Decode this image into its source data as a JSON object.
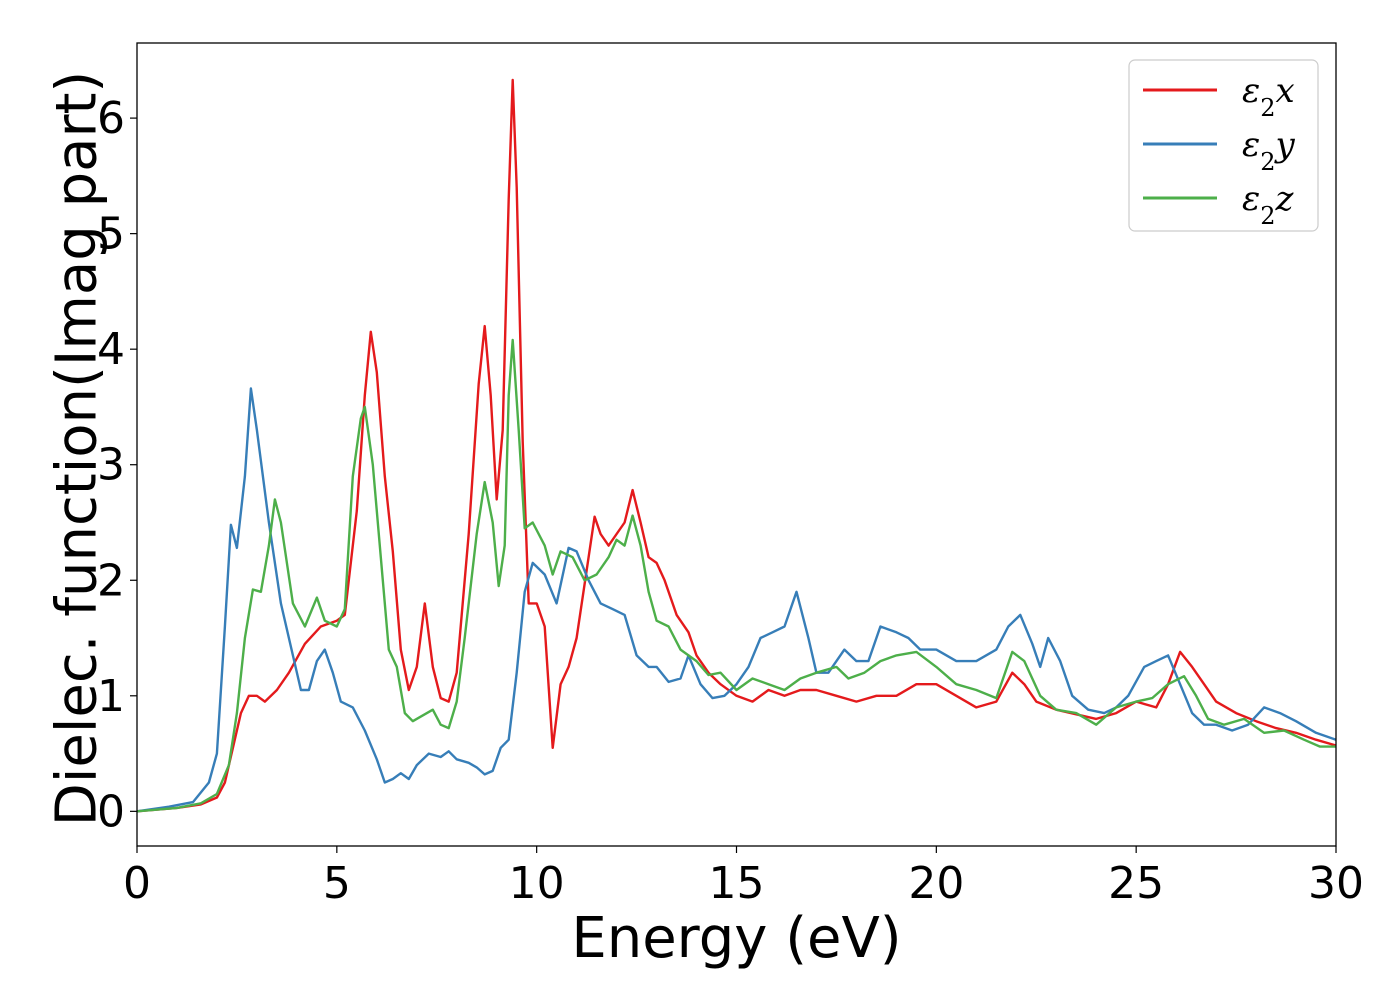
{
  "chart_data": {
    "type": "line",
    "title": "",
    "xlabel": "Energy (eV)",
    "ylabel": "Dielec. function(Imag part)",
    "xlim": [
      0,
      30
    ],
    "ylim": [
      -0.3,
      6.65
    ],
    "x_ticks": [
      "0",
      "5",
      "10",
      "15",
      "20",
      "25",
      "30"
    ],
    "y_ticks": [
      "0",
      "1",
      "2",
      "3",
      "4",
      "5",
      "6"
    ],
    "grid": false,
    "legend_position": "top-right",
    "series": [
      {
        "name": "ε₂x",
        "legend_base": "ε",
        "legend_sub": "2",
        "legend_var": "x",
        "color": "#e41a1c",
        "points": [
          [
            0,
            0
          ],
          [
            1,
            0.03
          ],
          [
            1.6,
            0.06
          ],
          [
            2,
            0.12
          ],
          [
            2.2,
            0.25
          ],
          [
            2.4,
            0.55
          ],
          [
            2.6,
            0.85
          ],
          [
            2.8,
            1.0
          ],
          [
            3.0,
            1.0
          ],
          [
            3.2,
            0.95
          ],
          [
            3.5,
            1.05
          ],
          [
            3.8,
            1.2
          ],
          [
            4.2,
            1.45
          ],
          [
            4.6,
            1.6
          ],
          [
            5.0,
            1.65
          ],
          [
            5.2,
            1.7
          ],
          [
            5.5,
            2.6
          ],
          [
            5.7,
            3.6
          ],
          [
            5.85,
            4.15
          ],
          [
            6.0,
            3.8
          ],
          [
            6.2,
            2.9
          ],
          [
            6.4,
            2.25
          ],
          [
            6.6,
            1.4
          ],
          [
            6.8,
            1.05
          ],
          [
            7.0,
            1.25
          ],
          [
            7.2,
            1.8
          ],
          [
            7.4,
            1.25
          ],
          [
            7.6,
            0.98
          ],
          [
            7.8,
            0.95
          ],
          [
            8.0,
            1.2
          ],
          [
            8.3,
            2.4
          ],
          [
            8.55,
            3.7
          ],
          [
            8.7,
            4.2
          ],
          [
            8.85,
            3.6
          ],
          [
            9.0,
            2.7
          ],
          [
            9.15,
            3.3
          ],
          [
            9.3,
            5.3
          ],
          [
            9.4,
            6.33
          ],
          [
            9.5,
            5.4
          ],
          [
            9.65,
            3.2
          ],
          [
            9.8,
            1.8
          ],
          [
            10.0,
            1.8
          ],
          [
            10.2,
            1.6
          ],
          [
            10.4,
            0.55
          ],
          [
            10.6,
            1.1
          ],
          [
            10.8,
            1.25
          ],
          [
            11.0,
            1.5
          ],
          [
            11.3,
            2.2
          ],
          [
            11.45,
            2.55
          ],
          [
            11.6,
            2.4
          ],
          [
            11.8,
            2.3
          ],
          [
            12.0,
            2.4
          ],
          [
            12.2,
            2.5
          ],
          [
            12.4,
            2.78
          ],
          [
            12.6,
            2.5
          ],
          [
            12.8,
            2.2
          ],
          [
            13.0,
            2.15
          ],
          [
            13.2,
            2.0
          ],
          [
            13.5,
            1.7
          ],
          [
            13.8,
            1.55
          ],
          [
            14.0,
            1.35
          ],
          [
            14.3,
            1.2
          ],
          [
            14.6,
            1.1
          ],
          [
            15.0,
            1.0
          ],
          [
            15.4,
            0.95
          ],
          [
            15.8,
            1.05
          ],
          [
            16.2,
            1.0
          ],
          [
            16.6,
            1.05
          ],
          [
            17.0,
            1.05
          ],
          [
            17.5,
            1.0
          ],
          [
            18.0,
            0.95
          ],
          [
            18.5,
            1.0
          ],
          [
            19.0,
            1.0
          ],
          [
            19.5,
            1.1
          ],
          [
            20.0,
            1.1
          ],
          [
            20.5,
            1.0
          ],
          [
            21.0,
            0.9
          ],
          [
            21.5,
            0.95
          ],
          [
            21.9,
            1.2
          ],
          [
            22.2,
            1.1
          ],
          [
            22.5,
            0.95
          ],
          [
            23.0,
            0.88
          ],
          [
            23.5,
            0.84
          ],
          [
            24.0,
            0.8
          ],
          [
            24.5,
            0.85
          ],
          [
            25.0,
            0.95
          ],
          [
            25.5,
            0.9
          ],
          [
            25.8,
            1.1
          ],
          [
            26.1,
            1.38
          ],
          [
            26.4,
            1.25
          ],
          [
            26.7,
            1.1
          ],
          [
            27.0,
            0.95
          ],
          [
            27.5,
            0.85
          ],
          [
            28.0,
            0.78
          ],
          [
            28.5,
            0.72
          ],
          [
            29.0,
            0.68
          ],
          [
            29.5,
            0.62
          ],
          [
            30,
            0.57
          ]
        ]
      },
      {
        "name": "ε₂y",
        "legend_base": "ε",
        "legend_sub": "2",
        "legend_var": "y",
        "color": "#377eb8",
        "points": [
          [
            0,
            0
          ],
          [
            0.8,
            0.04
          ],
          [
            1.4,
            0.08
          ],
          [
            1.8,
            0.25
          ],
          [
            2.0,
            0.5
          ],
          [
            2.2,
            1.6
          ],
          [
            2.35,
            2.48
          ],
          [
            2.5,
            2.28
          ],
          [
            2.7,
            2.9
          ],
          [
            2.85,
            3.66
          ],
          [
            3.0,
            3.3
          ],
          [
            3.3,
            2.5
          ],
          [
            3.6,
            1.8
          ],
          [
            3.9,
            1.35
          ],
          [
            4.1,
            1.05
          ],
          [
            4.3,
            1.05
          ],
          [
            4.5,
            1.3
          ],
          [
            4.7,
            1.4
          ],
          [
            4.9,
            1.2
          ],
          [
            5.1,
            0.95
          ],
          [
            5.4,
            0.9
          ],
          [
            5.7,
            0.7
          ],
          [
            6.0,
            0.45
          ],
          [
            6.2,
            0.25
          ],
          [
            6.4,
            0.28
          ],
          [
            6.6,
            0.33
          ],
          [
            6.8,
            0.28
          ],
          [
            7.0,
            0.4
          ],
          [
            7.3,
            0.5
          ],
          [
            7.6,
            0.47
          ],
          [
            7.8,
            0.52
          ],
          [
            8.0,
            0.45
          ],
          [
            8.3,
            0.42
          ],
          [
            8.5,
            0.38
          ],
          [
            8.7,
            0.32
          ],
          [
            8.9,
            0.35
          ],
          [
            9.1,
            0.55
          ],
          [
            9.3,
            0.62
          ],
          [
            9.5,
            1.2
          ],
          [
            9.7,
            1.9
          ],
          [
            9.9,
            2.15
          ],
          [
            10.2,
            2.05
          ],
          [
            10.5,
            1.8
          ],
          [
            10.8,
            2.28
          ],
          [
            11.0,
            2.25
          ],
          [
            11.3,
            2.0
          ],
          [
            11.6,
            1.8
          ],
          [
            11.9,
            1.75
          ],
          [
            12.2,
            1.7
          ],
          [
            12.5,
            1.35
          ],
          [
            12.8,
            1.25
          ],
          [
            13.0,
            1.25
          ],
          [
            13.3,
            1.12
          ],
          [
            13.6,
            1.15
          ],
          [
            13.8,
            1.35
          ],
          [
            14.1,
            1.1
          ],
          [
            14.4,
            0.98
          ],
          [
            14.7,
            1.0
          ],
          [
            15.0,
            1.1
          ],
          [
            15.3,
            1.25
          ],
          [
            15.6,
            1.5
          ],
          [
            15.9,
            1.55
          ],
          [
            16.2,
            1.6
          ],
          [
            16.5,
            1.9
          ],
          [
            16.8,
            1.5
          ],
          [
            17.0,
            1.2
          ],
          [
            17.3,
            1.2
          ],
          [
            17.7,
            1.4
          ],
          [
            18.0,
            1.3
          ],
          [
            18.3,
            1.3
          ],
          [
            18.6,
            1.6
          ],
          [
            19.0,
            1.55
          ],
          [
            19.3,
            1.5
          ],
          [
            19.6,
            1.4
          ],
          [
            20.0,
            1.4
          ],
          [
            20.5,
            1.3
          ],
          [
            21.0,
            1.3
          ],
          [
            21.5,
            1.4
          ],
          [
            21.8,
            1.6
          ],
          [
            22.1,
            1.7
          ],
          [
            22.4,
            1.45
          ],
          [
            22.6,
            1.25
          ],
          [
            22.8,
            1.5
          ],
          [
            23.1,
            1.3
          ],
          [
            23.4,
            1.0
          ],
          [
            23.8,
            0.88
          ],
          [
            24.2,
            0.85
          ],
          [
            24.5,
            0.9
          ],
          [
            24.8,
            1.0
          ],
          [
            25.2,
            1.25
          ],
          [
            25.5,
            1.3
          ],
          [
            25.8,
            1.35
          ],
          [
            26.1,
            1.1
          ],
          [
            26.4,
            0.85
          ],
          [
            26.7,
            0.75
          ],
          [
            27.0,
            0.75
          ],
          [
            27.4,
            0.7
          ],
          [
            27.8,
            0.75
          ],
          [
            28.2,
            0.9
          ],
          [
            28.6,
            0.85
          ],
          [
            29.0,
            0.78
          ],
          [
            29.5,
            0.68
          ],
          [
            30,
            0.62
          ]
        ]
      },
      {
        "name": "ε₂z",
        "legend_base": "ε",
        "legend_sub": "2",
        "legend_var": "z",
        "color": "#4daf4a",
        "points": [
          [
            0,
            0
          ],
          [
            1,
            0.03
          ],
          [
            1.6,
            0.07
          ],
          [
            2.0,
            0.15
          ],
          [
            2.3,
            0.4
          ],
          [
            2.5,
            0.85
          ],
          [
            2.7,
            1.5
          ],
          [
            2.9,
            1.92
          ],
          [
            3.1,
            1.9
          ],
          [
            3.3,
            2.3
          ],
          [
            3.45,
            2.7
          ],
          [
            3.6,
            2.5
          ],
          [
            3.9,
            1.8
          ],
          [
            4.2,
            1.6
          ],
          [
            4.5,
            1.85
          ],
          [
            4.7,
            1.65
          ],
          [
            5.0,
            1.6
          ],
          [
            5.2,
            1.75
          ],
          [
            5.4,
            2.9
          ],
          [
            5.6,
            3.4
          ],
          [
            5.7,
            3.5
          ],
          [
            5.9,
            3.0
          ],
          [
            6.1,
            2.2
          ],
          [
            6.3,
            1.4
          ],
          [
            6.5,
            1.25
          ],
          [
            6.7,
            0.85
          ],
          [
            6.9,
            0.78
          ],
          [
            7.1,
            0.82
          ],
          [
            7.4,
            0.88
          ],
          [
            7.6,
            0.75
          ],
          [
            7.8,
            0.72
          ],
          [
            8.0,
            0.95
          ],
          [
            8.2,
            1.5
          ],
          [
            8.5,
            2.4
          ],
          [
            8.7,
            2.85
          ],
          [
            8.9,
            2.5
          ],
          [
            9.05,
            1.95
          ],
          [
            9.2,
            2.3
          ],
          [
            9.3,
            3.6
          ],
          [
            9.4,
            4.08
          ],
          [
            9.55,
            3.3
          ],
          [
            9.7,
            2.45
          ],
          [
            9.9,
            2.5
          ],
          [
            10.2,
            2.3
          ],
          [
            10.4,
            2.05
          ],
          [
            10.6,
            2.25
          ],
          [
            10.9,
            2.2
          ],
          [
            11.2,
            2.0
          ],
          [
            11.5,
            2.05
          ],
          [
            11.8,
            2.2
          ],
          [
            12.0,
            2.35
          ],
          [
            12.2,
            2.3
          ],
          [
            12.4,
            2.56
          ],
          [
            12.6,
            2.3
          ],
          [
            12.8,
            1.9
          ],
          [
            13.0,
            1.65
          ],
          [
            13.3,
            1.6
          ],
          [
            13.6,
            1.4
          ],
          [
            14.0,
            1.3
          ],
          [
            14.3,
            1.18
          ],
          [
            14.6,
            1.2
          ],
          [
            15.0,
            1.05
          ],
          [
            15.4,
            1.15
          ],
          [
            15.8,
            1.1
          ],
          [
            16.2,
            1.05
          ],
          [
            16.6,
            1.15
          ],
          [
            17.0,
            1.2
          ],
          [
            17.5,
            1.25
          ],
          [
            17.8,
            1.15
          ],
          [
            18.2,
            1.2
          ],
          [
            18.6,
            1.3
          ],
          [
            19.0,
            1.35
          ],
          [
            19.5,
            1.38
          ],
          [
            20.0,
            1.25
          ],
          [
            20.5,
            1.1
          ],
          [
            21.0,
            1.05
          ],
          [
            21.5,
            0.98
          ],
          [
            21.9,
            1.38
          ],
          [
            22.2,
            1.3
          ],
          [
            22.6,
            1.0
          ],
          [
            23.0,
            0.88
          ],
          [
            23.5,
            0.85
          ],
          [
            24.0,
            0.75
          ],
          [
            24.5,
            0.9
          ],
          [
            25.0,
            0.95
          ],
          [
            25.4,
            0.98
          ],
          [
            25.8,
            1.1
          ],
          [
            26.2,
            1.17
          ],
          [
            26.5,
            1.0
          ],
          [
            26.8,
            0.8
          ],
          [
            27.2,
            0.75
          ],
          [
            27.7,
            0.8
          ],
          [
            28.2,
            0.68
          ],
          [
            28.7,
            0.7
          ],
          [
            29.2,
            0.62
          ],
          [
            29.6,
            0.56
          ],
          [
            30,
            0.56
          ]
        ]
      }
    ]
  }
}
